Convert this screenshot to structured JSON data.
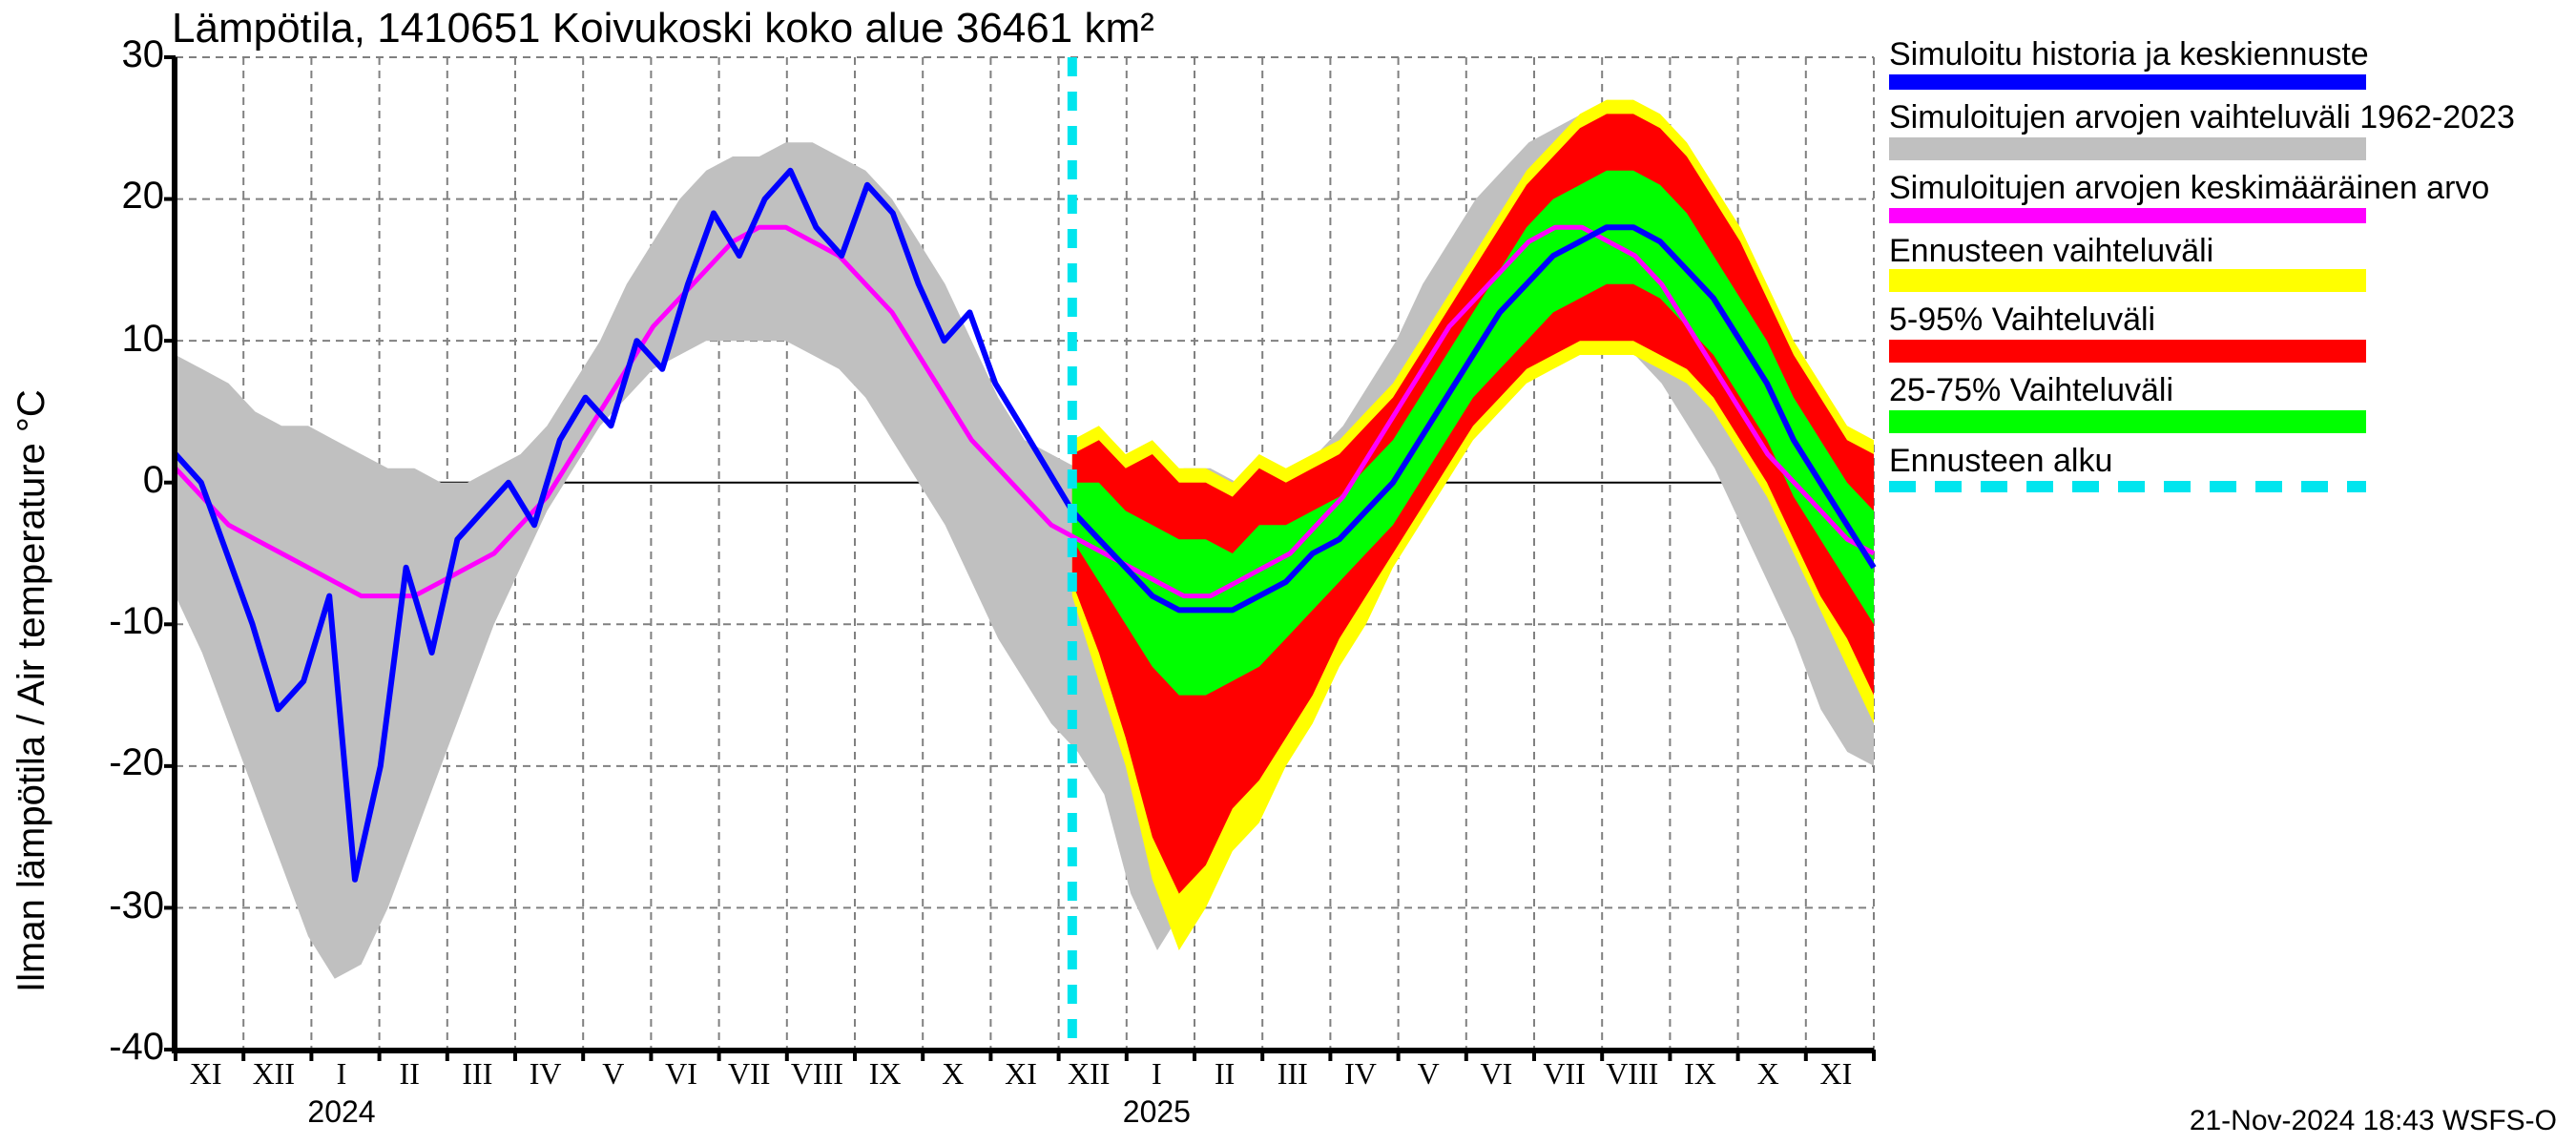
{
  "chart": {
    "title": "Lämpötila, 1410651 Koivukoski koko alue 36461 km²",
    "y_axis_label": "Ilman lämpötila / Air temperature    °C",
    "footer": "21-Nov-2024 18:43 WSFS-O",
    "background_color": "#ffffff",
    "grid_color": "#808080",
    "grid_dash": "4,3",
    "axis_color": "#000000",
    "title_fontsize": 22,
    "label_fontsize": 20,
    "tick_fontsize": 20,
    "xtick_fontsize": 16,
    "ylim": [
      -40,
      30
    ],
    "ytick_step": 10,
    "yticks": [
      30,
      20,
      10,
      0,
      -10,
      -20,
      -30,
      -40
    ],
    "x_months": [
      "XI",
      "XII",
      "I",
      "II",
      "III",
      "IV",
      "V",
      "VI",
      "VII",
      "VIII",
      "IX",
      "X",
      "XI",
      "XII",
      "I",
      "II",
      "III",
      "IV",
      "V",
      "VI",
      "VII",
      "VIII",
      "IX",
      "X",
      "XI"
    ],
    "x_month_count": 25,
    "year_labels": [
      {
        "text": "2024",
        "at_month_index": 2.5
      },
      {
        "text": "2025",
        "at_month_index": 14.5
      }
    ],
    "forecast_start_month_index": 13.2,
    "series_colors": {
      "history_range": "#c0c0c0",
      "history_mean": "#ff00ff",
      "simulated": "#0000ff",
      "forecast_full": "#ffff00",
      "forecast_5_95": "#ff0000",
      "forecast_25_75": "#00ff00",
      "forecast_start": "#00e5ee"
    },
    "line_widths": {
      "simulated": 3,
      "history_mean": 2.5,
      "forecast_start": 5
    },
    "legend": [
      {
        "label": "Simuloitu historia ja keskiennuste",
        "color": "#0000ff",
        "type": "line"
      },
      {
        "label": "Simuloitujen arvojen vaihteluväli 1962-2023",
        "color": "#c0c0c0",
        "type": "area"
      },
      {
        "label": "Simuloitujen arvojen keskimääräinen arvo",
        "color": "#ff00ff",
        "type": "line"
      },
      {
        "label": "Ennusteen vaihteluväli",
        "color": "#ffff00",
        "type": "area"
      },
      {
        "label": "5-95% Vaihteluväli",
        "color": "#ff0000",
        "type": "area"
      },
      {
        "label": "25-75% Vaihteluväli",
        "color": "#00ff00",
        "type": "area"
      },
      {
        "label": "Ennusteen alku",
        "color": "#00e5ee",
        "type": "dashed"
      }
    ],
    "history_range": {
      "upper": [
        9,
        8,
        7,
        5,
        4,
        4,
        3,
        2,
        1,
        1,
        0,
        0,
        1,
        2,
        4,
        7,
        10,
        14,
        17,
        20,
        22,
        23,
        23,
        24,
        24,
        23,
        22,
        20,
        17,
        14,
        10,
        6,
        3,
        2,
        1,
        1,
        0,
        0,
        1,
        1,
        0,
        0,
        1,
        2,
        4,
        7,
        10,
        14,
        17,
        20,
        22,
        24,
        25,
        26,
        27,
        26,
        25,
        23,
        20,
        16,
        12,
        8,
        5,
        3,
        1
      ],
      "lower": [
        -8,
        -12,
        -17,
        -22,
        -27,
        -32,
        -35,
        -34,
        -30,
        -25,
        -20,
        -15,
        -10,
        -6,
        -2,
        1,
        4,
        6,
        8,
        9,
        10,
        10,
        10,
        10,
        9,
        8,
        6,
        3,
        0,
        -3,
        -7,
        -11,
        -14,
        -17,
        -19,
        -22,
        -29,
        -33,
        -30,
        -26,
        -21,
        -17,
        -13,
        -9,
        -5,
        -1,
        2,
        5,
        7,
        9,
        10,
        11,
        11,
        11,
        10,
        9,
        7,
        4,
        1,
        -3,
        -7,
        -11,
        -16,
        -19,
        -20
      ]
    },
    "history_mean": [
      1,
      -1,
      -3,
      -4,
      -5,
      -6,
      -7,
      -8,
      -8,
      -8,
      -7,
      -6,
      -5,
      -3,
      -1,
      2,
      5,
      8,
      11,
      13,
      15,
      17,
      18,
      18,
      17,
      16,
      14,
      12,
      9,
      6,
      3,
      1,
      -1,
      -3,
      -4,
      -5,
      -6,
      -7,
      -8,
      -8,
      -7,
      -6,
      -5,
      -3,
      -1,
      2,
      5,
      8,
      11,
      13,
      15,
      17,
      18,
      18,
      17,
      16,
      14,
      11,
      8,
      5,
      2,
      0,
      -2,
      -4,
      -5
    ],
    "simulated": [
      2,
      0,
      -5,
      -10,
      -16,
      -14,
      -8,
      -28,
      -20,
      -6,
      -12,
      -4,
      -2,
      0,
      -3,
      3,
      6,
      4,
      10,
      8,
      14,
      19,
      16,
      20,
      22,
      18,
      16,
      21,
      19,
      14,
      10,
      12,
      7,
      4,
      1,
      -2
    ],
    "forecast_full": {
      "upper": [
        3,
        4,
        2,
        3,
        1,
        1,
        0,
        2,
        1,
        2,
        3,
        5,
        7,
        10,
        13,
        16,
        19,
        22,
        24,
        26,
        27,
        27,
        26,
        24,
        21,
        18,
        14,
        10,
        7,
        4,
        3
      ],
      "lower": [
        -8,
        -14,
        -20,
        -28,
        -33,
        -30,
        -26,
        -24,
        -20,
        -17,
        -13,
        -10,
        -6,
        -3,
        0,
        3,
        5,
        7,
        8,
        9,
        9,
        9,
        8,
        7,
        5,
        2,
        -1,
        -5,
        -9,
        -13,
        -17
      ]
    },
    "forecast_5_95": {
      "upper": [
        2,
        3,
        1,
        2,
        0,
        0,
        -1,
        1,
        0,
        1,
        2,
        4,
        6,
        9,
        12,
        15,
        18,
        21,
        23,
        25,
        26,
        26,
        25,
        23,
        20,
        17,
        13,
        9,
        6,
        3,
        2
      ],
      "lower": [
        -7,
        -12,
        -18,
        -25,
        -29,
        -27,
        -23,
        -21,
        -18,
        -15,
        -11,
        -8,
        -5,
        -2,
        1,
        4,
        6,
        8,
        9,
        10,
        10,
        10,
        9,
        8,
        6,
        3,
        0,
        -4,
        -8,
        -11,
        -15
      ]
    },
    "forecast_25_75": {
      "upper": [
        0,
        0,
        -2,
        -3,
        -4,
        -4,
        -5,
        -3,
        -3,
        -2,
        -1,
        1,
        3,
        6,
        9,
        12,
        15,
        18,
        20,
        21,
        22,
        22,
        21,
        19,
        16,
        13,
        10,
        6,
        3,
        0,
        -2
      ],
      "lower": [
        -4,
        -7,
        -10,
        -13,
        -15,
        -15,
        -14,
        -13,
        -11,
        -9,
        -7,
        -5,
        -3,
        0,
        3,
        6,
        8,
        10,
        12,
        13,
        14,
        14,
        13,
        11,
        9,
        6,
        3,
        -1,
        -4,
        -7,
        -10
      ]
    },
    "forecast_median": [
      -2,
      -4,
      -6,
      -8,
      -9,
      -9,
      -9,
      -8,
      -7,
      -5,
      -4,
      -2,
      0,
      3,
      6,
      9,
      12,
      14,
      16,
      17,
      18,
      18,
      17,
      15,
      13,
      10,
      7,
      3,
      0,
      -3,
      -6
    ]
  }
}
